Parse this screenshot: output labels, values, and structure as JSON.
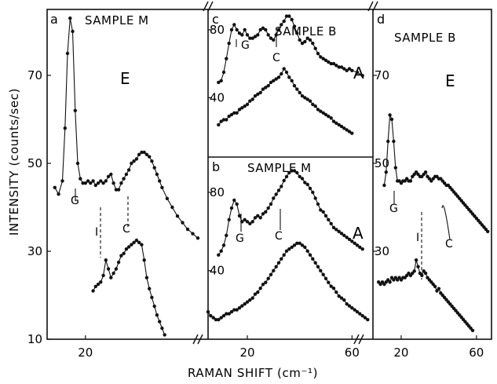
{
  "figure": {
    "ylabel": "INTENSITY (counts/sec)",
    "xlabel": "RAMAN SHIFT (cm⁻¹)"
  },
  "chart_data": [
    {
      "panel": "a",
      "type": "scatter",
      "title": "SAMPLE M",
      "polarization": "E",
      "xlim": [
        5,
        68
      ],
      "ylim": [
        10,
        85
      ],
      "yticks": [
        10,
        30,
        50,
        70
      ],
      "xticks": [
        20
      ],
      "series": [
        {
          "x": [
            8,
            9.5,
            11,
            12,
            13,
            14,
            15,
            16,
            17,
            18,
            19,
            20,
            21,
            22,
            23,
            24,
            25,
            26,
            27,
            28,
            29,
            30,
            31,
            32,
            33,
            34,
            35,
            36,
            37,
            38,
            39,
            40,
            41,
            42,
            43,
            44,
            45,
            46,
            47,
            48,
            49,
            50,
            52,
            54,
            56,
            58,
            60,
            62,
            64
          ],
          "y": [
            44.5,
            43,
            46,
            58,
            75,
            83,
            80,
            62,
            50,
            46.5,
            45.5,
            45.5,
            46,
            45.5,
            46,
            45,
            45.5,
            46,
            45.5,
            46,
            47,
            47.5,
            45.5,
            44,
            44,
            45.5,
            46.5,
            47.5,
            48.5,
            50,
            50.5,
            51,
            52,
            52.5,
            52.5,
            52,
            51.5,
            50.5,
            49,
            47.5,
            46,
            44.5,
            42,
            40,
            38,
            36.5,
            35,
            34,
            33
          ]
        },
        {
          "x": [
            23,
            24,
            25,
            26,
            27,
            28,
            29,
            30,
            31,
            32,
            33,
            34,
            35,
            36,
            37,
            38,
            39,
            40,
            41,
            42,
            43,
            44,
            45,
            46,
            47,
            48,
            49,
            50,
            51
          ],
          "y": [
            21,
            22,
            22.5,
            23,
            24.5,
            28,
            26,
            24,
            25,
            26,
            27.5,
            29,
            29.5,
            30.5,
            31,
            31.5,
            32,
            32.5,
            32,
            31.5,
            28,
            24,
            21.5,
            19.5,
            17.5,
            15.5,
            14,
            12.5,
            11
          ]
        }
      ],
      "annotations": [
        "G",
        "I",
        "C"
      ]
    },
    {
      "panel": "c",
      "type": "scatter",
      "title": "SAMPLE B",
      "polarization": "A",
      "xlim": [
        5,
        68
      ],
      "ylim": [
        5,
        92
      ],
      "yticks": [
        40,
        80
      ],
      "series": [
        {
          "x": [
            9,
            10,
            11,
            12,
            13,
            14,
            15,
            16,
            17,
            18,
            19,
            20,
            21,
            22,
            23,
            24,
            25,
            26,
            27,
            28,
            29,
            30,
            31,
            32,
            33,
            34,
            35,
            36,
            37,
            38,
            39,
            40,
            41,
            42,
            43,
            44,
            45,
            46,
            47,
            48,
            49,
            50,
            51,
            52,
            53,
            54,
            55,
            56,
            57,
            58,
            59,
            60,
            62,
            64
          ],
          "y": [
            49,
            50,
            55,
            63,
            72,
            80,
            83,
            80,
            78,
            77,
            80,
            77,
            75,
            75,
            76,
            77,
            80,
            81,
            80,
            77,
            75,
            74,
            77,
            80,
            83,
            85,
            88,
            88,
            86,
            82,
            78,
            74,
            72,
            73,
            75,
            74,
            72,
            69,
            66,
            64,
            63,
            62,
            61,
            60,
            60,
            59,
            58,
            58,
            57,
            56,
            57,
            56,
            55,
            53
          ]
        },
        {
          "x": [
            9,
            10,
            11,
            12,
            13,
            14,
            15,
            16,
            17,
            18,
            19,
            20,
            21,
            22,
            23,
            24,
            25,
            26,
            27,
            28,
            29,
            30,
            31,
            32,
            33,
            34,
            35,
            36,
            37,
            38,
            39,
            40,
            41,
            42,
            43,
            44,
            45,
            46,
            47,
            48,
            49,
            50,
            51,
            52,
            53,
            54,
            55,
            56,
            57,
            58,
            59,
            60
          ],
          "y": [
            24,
            26,
            27,
            27,
            29,
            30,
            31,
            31,
            33,
            34,
            35,
            36,
            38,
            39,
            41,
            42,
            43,
            45,
            46,
            47,
            49,
            50,
            51,
            52,
            54,
            57,
            55,
            52,
            50,
            47,
            45,
            43,
            41,
            40,
            39,
            38,
            36,
            35,
            33,
            32,
            31,
            30,
            29,
            28,
            26,
            25,
            24,
            23,
            22,
            21,
            20,
            19
          ]
        }
      ],
      "annotations": [
        "G",
        "C"
      ]
    },
    {
      "panel": "b",
      "type": "scatter",
      "title": "SAMPLE M",
      "polarization": "A",
      "xlim": [
        5,
        68
      ],
      "ylim": [
        5,
        98
      ],
      "yticks": [
        40,
        80
      ],
      "xticks": [
        20,
        60
      ],
      "series": [
        {
          "x": [
            9,
            10,
            11,
            12,
            13,
            14,
            15,
            16,
            17,
            18,
            19,
            20,
            21,
            22,
            23,
            24,
            25,
            26,
            27,
            28,
            29,
            30,
            31,
            32,
            33,
            34,
            35,
            36,
            37,
            38,
            39,
            40,
            41,
            42,
            43,
            44,
            45,
            46,
            47,
            48,
            49,
            50,
            51,
            52,
            53,
            54,
            55,
            56,
            57,
            58,
            59,
            60,
            61,
            62,
            63,
            64
          ],
          "y": [
            48,
            50,
            53,
            58,
            66,
            72,
            76,
            74,
            68,
            65,
            66,
            65,
            64,
            65,
            67,
            68,
            67,
            69,
            70,
            72,
            74,
            77,
            79,
            81,
            83,
            86,
            88,
            90,
            91,
            91,
            90,
            88,
            87,
            85,
            84,
            82,
            80,
            77,
            74,
            71,
            70,
            68,
            66,
            64,
            62,
            61,
            60,
            59,
            58,
            57,
            56,
            55,
            54,
            53,
            52,
            51
          ]
        },
        {
          "x": [
            5,
            6,
            7,
            8,
            9,
            10,
            11,
            12,
            13,
            14,
            15,
            16,
            17,
            18,
            19,
            20,
            21,
            22,
            23,
            24,
            25,
            26,
            27,
            28,
            29,
            30,
            31,
            32,
            33,
            34,
            35,
            36,
            37,
            38,
            39,
            40,
            41,
            42,
            43,
            44,
            45,
            46,
            47,
            48,
            49,
            50,
            51,
            52,
            53,
            54,
            55,
            56,
            57,
            58,
            59,
            60,
            61,
            62,
            63,
            64,
            65,
            66
          ],
          "y": [
            19,
            17,
            16,
            15,
            15,
            16,
            17,
            18,
            18,
            19,
            20,
            20,
            21,
            22,
            23,
            24,
            25,
            26,
            28,
            29,
            31,
            33,
            34,
            36,
            38,
            40,
            42,
            44,
            46,
            48,
            50,
            51,
            52,
            53,
            54,
            54,
            53,
            52,
            50,
            48,
            46,
            44,
            42,
            40,
            38,
            36,
            34,
            32,
            31,
            29,
            27,
            26,
            25,
            23,
            22,
            21,
            20,
            19,
            18,
            17,
            16,
            15
          ]
        }
      ],
      "annotations": [
        "G",
        "C"
      ]
    },
    {
      "panel": "d",
      "type": "scatter",
      "title": "SAMPLE B",
      "polarization": "E",
      "xlim": [
        5,
        68
      ],
      "ylim": [
        10,
        85
      ],
      "yticks": [
        30,
        50,
        70
      ],
      "xticks": [
        20,
        60
      ],
      "series": [
        {
          "x": [
            11,
            12,
            13,
            14,
            15,
            16,
            17,
            18,
            19,
            20,
            21,
            22,
            23,
            24,
            25,
            26,
            27,
            28,
            29,
            30,
            31,
            32,
            33,
            34,
            35,
            36,
            37,
            38,
            39,
            40,
            41,
            42,
            43,
            44,
            45,
            46,
            47,
            48,
            49,
            50,
            51,
            52,
            53,
            54,
            55,
            56,
            57,
            58,
            59,
            60,
            61,
            62,
            63,
            64,
            65,
            66
          ],
          "y": [
            45,
            48,
            55,
            61,
            60,
            55,
            49,
            46,
            46,
            45.5,
            46,
            46,
            46.5,
            46,
            46,
            47,
            47.5,
            48,
            47.5,
            47,
            47,
            47.5,
            48,
            47,
            46.5,
            46,
            46.5,
            47,
            47,
            46.5,
            46.5,
            46,
            45.5,
            45,
            45,
            44.5,
            44,
            43.5,
            43,
            42.5,
            42,
            41.5,
            41,
            40.5,
            40,
            39.5,
            39,
            38.5,
            38,
            37.5,
            37,
            36.5,
            36,
            35.5,
            35,
            34.5
          ]
        },
        {
          "x": [
            8,
            9,
            10,
            11,
            12,
            13,
            14,
            15,
            16,
            17,
            18,
            19,
            20,
            21,
            22,
            23,
            24,
            25,
            26,
            27,
            28,
            29,
            30,
            31,
            32,
            33,
            34,
            35,
            36,
            37,
            38,
            39,
            40,
            41,
            42,
            43,
            44,
            45,
            46,
            47,
            48,
            49,
            50,
            51,
            52,
            53,
            54,
            55,
            56,
            57,
            58
          ],
          "y": [
            23,
            22.5,
            23,
            22.5,
            23,
            23.5,
            23,
            24,
            23.5,
            24,
            23.5,
            24,
            23.5,
            24,
            24,
            24.5,
            25,
            24.5,
            25,
            25.5,
            28,
            26.5,
            25,
            24.5,
            25.5,
            25,
            24,
            23.5,
            23,
            22.5,
            22,
            21,
            21.5,
            20.5,
            20,
            19.5,
            19,
            18.5,
            18,
            17.5,
            17,
            16.5,
            16,
            15.5,
            15,
            14.5,
            14,
            13.5,
            13,
            12.5,
            12
          ]
        }
      ],
      "annotations": [
        "G",
        "I",
        "C"
      ]
    }
  ]
}
